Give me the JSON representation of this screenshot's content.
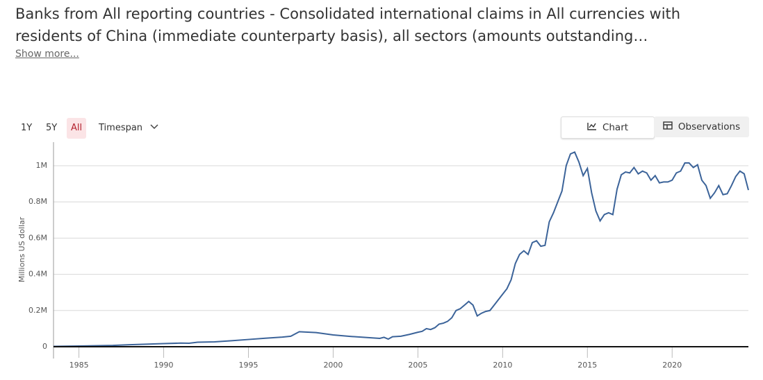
{
  "header": {
    "title": "Banks from All reporting countries - Consolidated international claims in All currencies with residents of China (immediate counterparty basis), all sectors (amounts outstanding…",
    "show_more": "Show more..."
  },
  "controls": {
    "ranges": [
      "1Y",
      "5Y",
      "All"
    ],
    "selected_range": 2,
    "timespan": "Timespan",
    "tabs": [
      "Chart",
      "Observations"
    ],
    "selected_tab": 0
  },
  "chart_data": {
    "type": "line",
    "ylabel": "Millions US dollar",
    "x": [
      1983.5,
      1985,
      1987,
      1988,
      1990,
      1991,
      1991.5,
      1992,
      1993,
      1994,
      1995,
      1996,
      1997,
      1997.5,
      1998,
      1999,
      2000,
      2001,
      2002,
      2002.75,
      2003,
      2003.25,
      2003.5,
      2004,
      2004.5,
      2005,
      2005.25,
      2005.5,
      2005.75,
      2006,
      2006.25,
      2006.5,
      2006.75,
      2007,
      2007.25,
      2007.5,
      2007.75,
      2008,
      2008.25,
      2008.5,
      2008.75,
      2009,
      2009.25,
      2009.5,
      2009.75,
      2010,
      2010.25,
      2010.5,
      2010.75,
      2011,
      2011.25,
      2011.5,
      2011.75,
      2012,
      2012.25,
      2012.5,
      2012.75,
      2013,
      2013.25,
      2013.5,
      2013.75,
      2014,
      2014.25,
      2014.5,
      2014.75,
      2015,
      2015.25,
      2015.5,
      2015.75,
      2016,
      2016.25,
      2016.5,
      2016.75,
      2017,
      2017.25,
      2017.5,
      2017.75,
      2018,
      2018.25,
      2018.5,
      2018.75,
      2019,
      2019.25,
      2019.5,
      2019.75,
      2020,
      2020.25,
      2020.5,
      2020.75,
      2021,
      2021.25,
      2021.5,
      2021.75,
      2022,
      2022.25,
      2022.5,
      2022.75,
      2023,
      2023.25,
      2023.5,
      2023.75,
      2024,
      2024.25,
      2024.5
    ],
    "series": [
      {
        "name": "China",
        "color": "#3b6399",
        "values": [
          2000,
          4000,
          7000,
          11000,
          17000,
          20000,
          19000,
          25000,
          27000,
          33000,
          40000,
          47000,
          53000,
          58000,
          83000,
          78000,
          65000,
          57000,
          51000,
          46000,
          52000,
          42000,
          55000,
          58000,
          68000,
          80000,
          85000,
          100000,
          95000,
          105000,
          125000,
          130000,
          140000,
          160000,
          200000,
          210000,
          230000,
          250000,
          230000,
          170000,
          185000,
          195000,
          200000,
          230000,
          260000,
          290000,
          320000,
          370000,
          460000,
          510000,
          530000,
          510000,
          575000,
          585000,
          555000,
          560000,
          690000,
          740000,
          800000,
          860000,
          1000000,
          1065000,
          1075000,
          1020000,
          945000,
          985000,
          850000,
          750000,
          695000,
          730000,
          740000,
          730000,
          870000,
          950000,
          965000,
          960000,
          990000,
          955000,
          970000,
          960000,
          920000,
          945000,
          905000,
          910000,
          910000,
          920000,
          960000,
          970000,
          1015000,
          1015000,
          990000,
          1005000,
          920000,
          890000,
          820000,
          850000,
          890000,
          840000,
          845000,
          890000,
          940000,
          970000,
          955000,
          865000
        ]
      }
    ],
    "xlim": [
      1983.5,
      2024.5
    ],
    "xticks": [
      1985,
      1990,
      1995,
      2000,
      2005,
      2010,
      2015,
      2020
    ],
    "ylim": [
      0,
      1130000
    ],
    "yticks": [
      0,
      {
        "value": 200000,
        "label": "0.2M"
      },
      {
        "value": 400000,
        "label": "0.4M"
      },
      {
        "value": 600000,
        "label": "0.6M"
      },
      {
        "value": 800000,
        "label": "0.8M"
      },
      {
        "value": 1000000,
        "label": "1M"
      }
    ],
    "grid": true
  }
}
